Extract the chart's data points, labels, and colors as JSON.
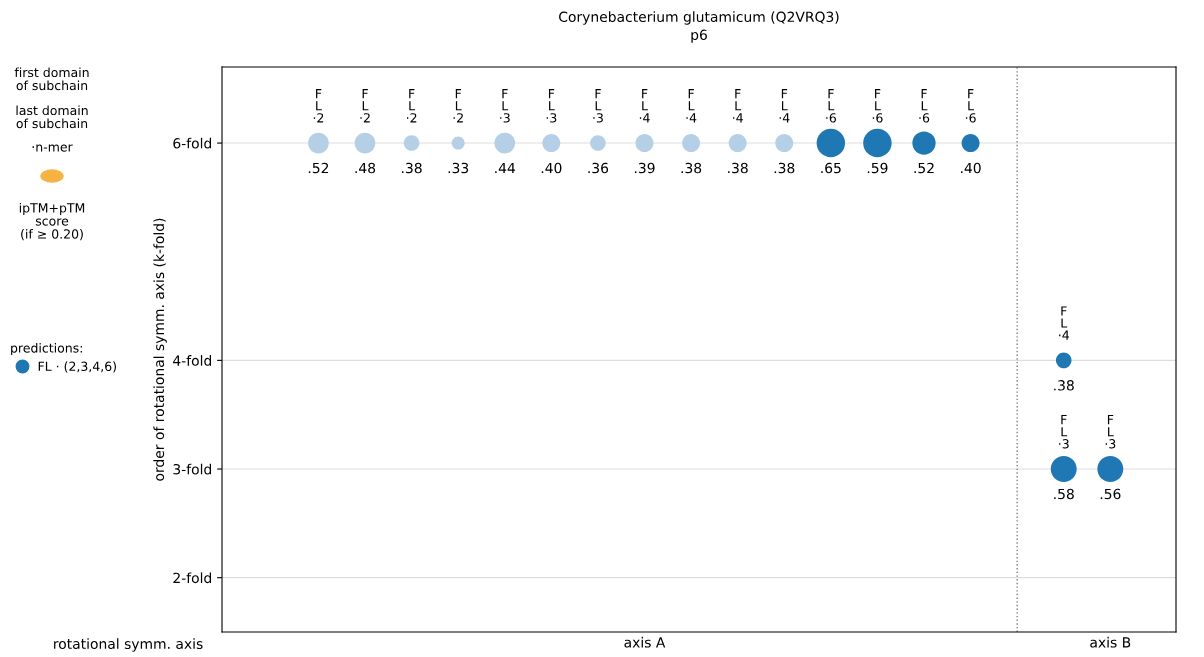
{
  "chart_data": {
    "type": "bubble",
    "title": "Corynebacterium glutamicum (Q2VRQ3)",
    "subtitle": "p6",
    "xlabel": "rotational symm. axis",
    "ylabel": "order of rotational symm. axis (k-fold)",
    "categories": [
      null,
      null,
      null,
      null,
      null,
      null,
      null,
      "axis A",
      null,
      null,
      null,
      null,
      null,
      null,
      null,
      null,
      null,
      "axis B"
    ],
    "ylim": [
      1.5,
      6.7
    ],
    "yticks": [
      {
        "value": 2,
        "label": "2-fold"
      },
      {
        "value": 3,
        "label": "3-fold"
      },
      {
        "value": 4,
        "label": "4-fold"
      },
      {
        "value": 6,
        "label": "6-fold"
      }
    ],
    "grid": "y",
    "legend": "left",
    "legend_title": "predictions:",
    "series": [
      {
        "name": "FL · (2,3,4,6)",
        "color": "#1f77b4",
        "values": [
          6,
          6,
          6,
          6,
          6,
          6,
          6,
          6,
          6,
          6,
          6,
          6,
          6,
          6,
          6,
          null,
          4,
          null
        ],
        "sizes": [
          0.53,
          0.53,
          0.3,
          0.21,
          0.53,
          0.4,
          0.3,
          0.4,
          0.4,
          0.4,
          0.4,
          1,
          1,
          0.67,
          0.4,
          null,
          0.3,
          null
        ],
        "colors": [
          "#b5cfe6",
          "#b5cfe6",
          "#b5cfe6",
          "#b5cfe6",
          "#b5cfe6",
          "#b5cfe6",
          "#b5cfe6",
          "#b5cfe6",
          "#b5cfe6",
          "#b5cfe6",
          "#b5cfe6",
          "#1f77b4",
          "#1f77b4",
          "#1f77b4",
          "#1f77b4",
          null,
          "#1f77b4",
          null
        ]
      },
      {
        "color": "#1f77b4",
        "values": [
          null,
          null,
          null,
          null,
          null,
          null,
          null,
          null,
          null,
          null,
          null,
          null,
          null,
          null,
          null,
          null,
          3,
          3
        ],
        "sizes": [
          null,
          null,
          null,
          null,
          null,
          null,
          null,
          null,
          null,
          null,
          null,
          null,
          null,
          null,
          null,
          null,
          0.83,
          0.83
        ]
      }
    ],
    "annotations": [
      "F\nL\n·2",
      "F\nL\n·2",
      "F\nL\n·2",
      "F\nL\n·2",
      "F\nL\n·3",
      "F\nL\n·3",
      "F\nL\n·3",
      "F\nL\n·4",
      "F\nL\n·4",
      "F\nL\n·4",
      "F\nL\n·4",
      "F\nL\n·6",
      "F\nL\n·6",
      "F\nL\n·6",
      "F\nL\n·6",
      "F\nL\n·4",
      "F\nL\n·3",
      "F\nL\n·3",
      ".52",
      ".48",
      ".38",
      ".33",
      ".44",
      ".40",
      ".36",
      ".39",
      ".38",
      ".38",
      ".38",
      ".65",
      ".59",
      ".52",
      ".40",
      ".38",
      ".58",
      ".56",
      "first domain\nof subchain",
      "last domain\nof subchain",
      "·n-mer",
      "ipTM+pTM\nscore\n(if ≥ 0.20)"
    ]
  }
}
